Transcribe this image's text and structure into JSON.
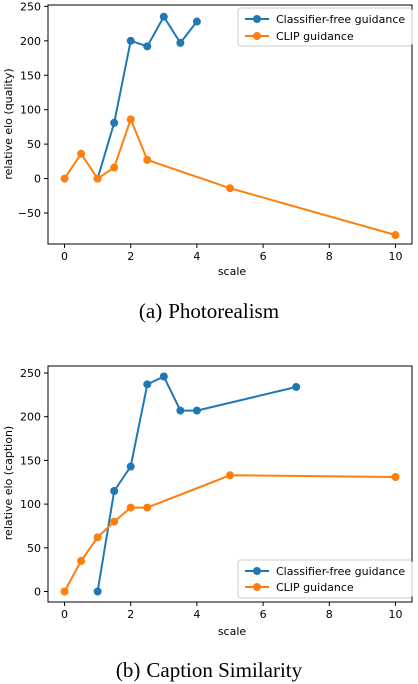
{
  "colors": {
    "classifier_free": "#1f77b4",
    "clip": "#ff7f0e"
  },
  "chart_data": [
    {
      "type": "line",
      "caption_label": "(a)",
      "caption_text": "Photorealism",
      "xlabel": "scale",
      "ylabel": "relative elo (quality)",
      "xlim": [
        -0.5,
        10.5
      ],
      "ylim": [
        -95,
        252
      ],
      "xticks": [
        "0",
        "2",
        "4",
        "6",
        "8",
        "10"
      ],
      "yticks": [
        "−50",
        "0",
        "50",
        "100",
        "150",
        "200",
        "250"
      ],
      "legend_position": "top-right",
      "series": [
        {
          "name": "Classifier-free guidance",
          "x": [
            1,
            1.5,
            2,
            2.5,
            3,
            3.5,
            4
          ],
          "y": [
            0,
            81,
            200,
            192,
            235,
            197,
            228
          ]
        },
        {
          "name": "CLIP guidance",
          "x": [
            0,
            0.5,
            1,
            1.5,
            2,
            2.5,
            5,
            10
          ],
          "y": [
            0,
            36,
            0,
            16,
            86,
            27,
            -14,
            -82
          ]
        }
      ]
    },
    {
      "type": "line",
      "caption_label": "(b)",
      "caption_text": "Caption Similarity",
      "xlabel": "scale",
      "ylabel": "relative elo (caption)",
      "xlim": [
        -0.5,
        10.5
      ],
      "ylim": [
        -12,
        258
      ],
      "xticks": [
        "0",
        "2",
        "4",
        "6",
        "8",
        "10"
      ],
      "yticks": [
        "0",
        "50",
        "100",
        "150",
        "200",
        "250"
      ],
      "legend_position": "bottom-right",
      "series": [
        {
          "name": "Classifier-free guidance",
          "x": [
            1,
            1.5,
            2,
            2.5,
            3,
            3.5,
            4,
            7
          ],
          "y": [
            0,
            115,
            143,
            237,
            246,
            207,
            207,
            234
          ]
        },
        {
          "name": "CLIP guidance",
          "x": [
            0,
            0.5,
            1,
            1.5,
            2,
            2.5,
            5,
            10
          ],
          "y": [
            0,
            35,
            62,
            80,
            96,
            96,
            133,
            131
          ]
        }
      ]
    }
  ]
}
